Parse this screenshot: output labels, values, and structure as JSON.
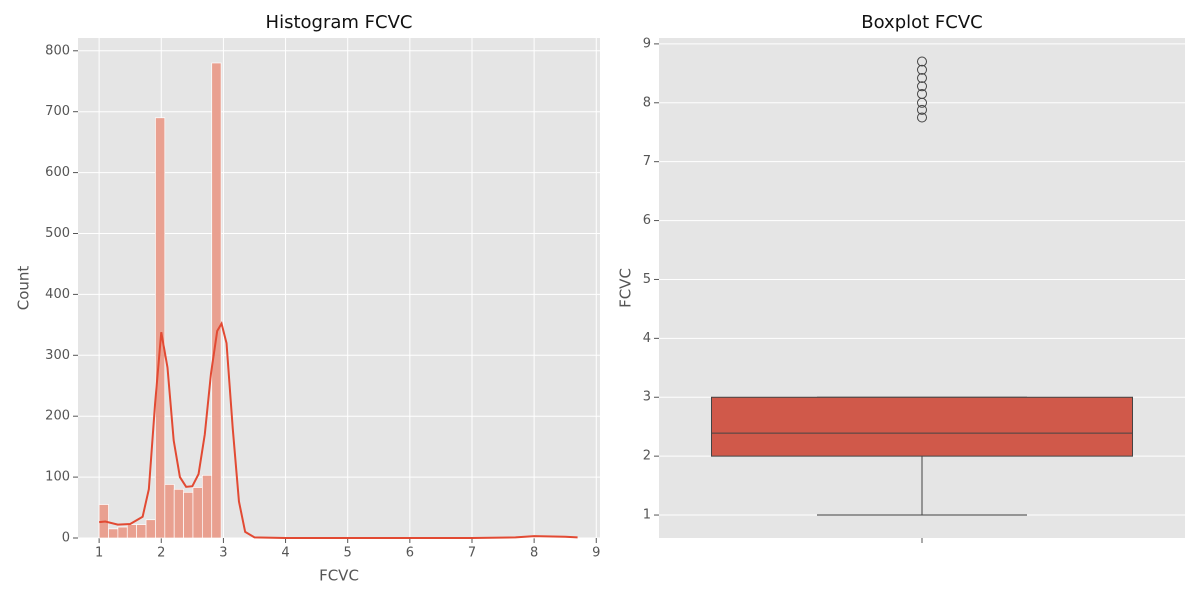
{
  "chart_data": [
    {
      "type": "histogram",
      "title": "Histogram FCVC",
      "xlabel": "FCVC",
      "ylabel": "Count",
      "bins": [
        1,
        1.151,
        1.302,
        1.453,
        1.604,
        1.755,
        1.906,
        2.057,
        2.208,
        2.359,
        2.51,
        2.661,
        2.812,
        2.963,
        3.114,
        3.265,
        3.416,
        3.567,
        3.718,
        3.869,
        4.02,
        4.171,
        4.322,
        4.473,
        4.624,
        4.775,
        4.926,
        5.077,
        5.228,
        5.379,
        5.53,
        5.681,
        5.832,
        5.983,
        6.134,
        6.285,
        6.436,
        6.587,
        6.738,
        6.889,
        7.04,
        7.191,
        7.342,
        7.493,
        7.644,
        7.795,
        7.946,
        8.097,
        8.248,
        8.399,
        8.55,
        8.701
      ],
      "values": [
        55,
        15,
        18,
        22,
        22,
        30,
        690,
        88,
        80,
        75,
        83,
        103,
        780,
        0,
        0,
        0,
        0,
        0,
        0,
        0,
        0,
        0,
        0,
        0,
        0,
        0,
        0,
        0,
        0,
        0,
        0,
        0,
        0,
        0,
        0,
        0,
        0,
        0,
        0,
        0,
        0,
        0,
        0,
        0,
        1,
        1,
        1,
        1,
        1,
        1,
        2
      ],
      "color": "#e9a090",
      "kde": {
        "color": "#e24a33",
        "x": [
          1,
          1.1,
          1.3,
          1.5,
          1.7,
          1.8,
          1.9,
          2.0,
          2.1,
          2.2,
          2.3,
          2.4,
          2.5,
          2.6,
          2.7,
          2.8,
          2.9,
          2.97,
          3.05,
          3.15,
          3.25,
          3.35,
          3.5,
          4,
          7,
          7.7,
          8,
          8.5,
          8.7
        ],
        "y": [
          26,
          27,
          22,
          23,
          35,
          80,
          220,
          338,
          280,
          160,
          100,
          84,
          85,
          105,
          170,
          270,
          340,
          352,
          320,
          180,
          60,
          10,
          1,
          0,
          0,
          1,
          3,
          2,
          1
        ]
      },
      "xlim": [
        0.66,
        9.06
      ],
      "ylim": [
        0,
        821
      ],
      "xticks": [
        1,
        2,
        3,
        4,
        5,
        6,
        7,
        8,
        9
      ],
      "yticks": [
        0,
        100,
        200,
        300,
        400,
        500,
        600,
        700,
        800
      ],
      "grid": true
    },
    {
      "type": "box",
      "title": "Boxplot FCVC",
      "ylabel": "FCVC",
      "color": "#d0594a",
      "whislo": 1,
      "q1": 2,
      "median": 2.39,
      "q3": 3,
      "whishi": 3,
      "fliers": [
        7.75,
        7.88,
        8.0,
        8.15,
        8.28,
        8.42,
        8.56,
        8.7
      ],
      "ylim": [
        0.61,
        9.1
      ],
      "yticks": [
        1,
        2,
        3,
        4,
        5,
        6,
        7,
        8,
        9
      ],
      "grid": true
    }
  ]
}
